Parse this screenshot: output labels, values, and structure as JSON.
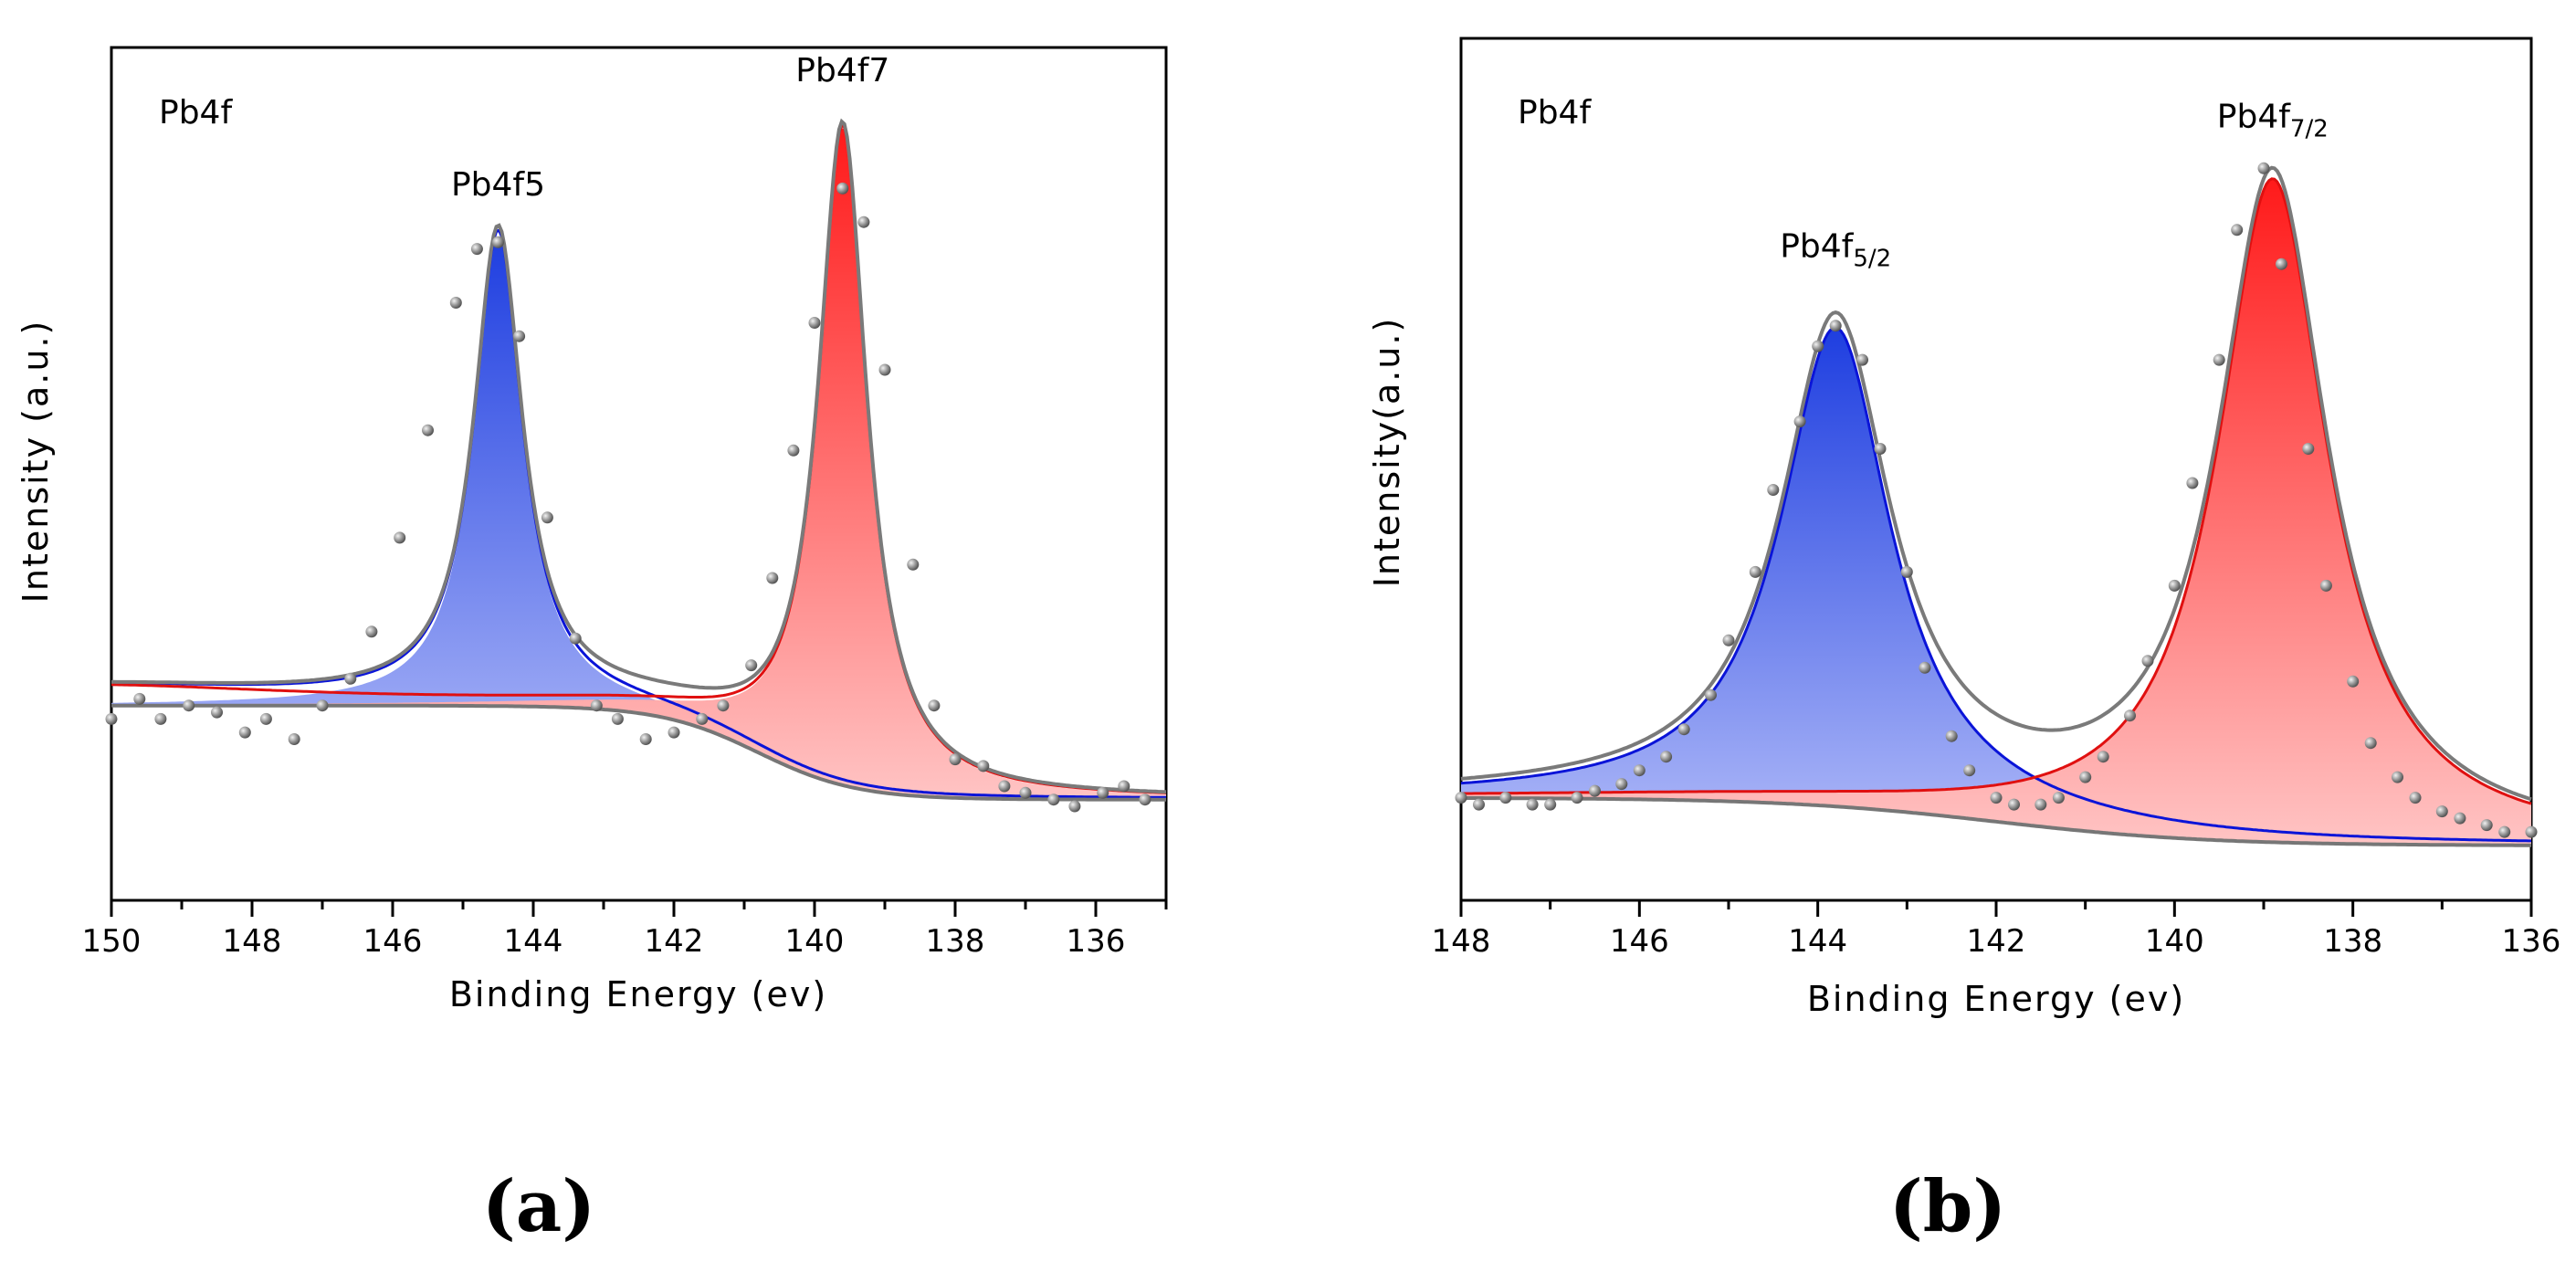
{
  "chart_data": [
    {
      "type": "line",
      "panel": "(a)",
      "annotation": "Pb4f",
      "xlabel": "Binding Energy (ev)",
      "ylabel": "Intensity (a.u.)",
      "xlim": [
        150,
        135
      ],
      "ylim": [
        -0.15,
        1.12
      ],
      "xticks": [
        150,
        148,
        146,
        144,
        142,
        140,
        138,
        136
      ],
      "x_tick_labels": [
        "150",
        "148",
        "146",
        "144",
        "142",
        "140",
        "138",
        "136"
      ],
      "legend": "none",
      "grid": false,
      "background": {
        "left_level": 0.14,
        "right_level": 0.0,
        "step_center": 140.8,
        "step_width": 0.7
      },
      "peaks": [
        {
          "name": "Pb4f5",
          "label": "Pb4f5",
          "sub": "",
          "center": 144.5,
          "height": 0.7,
          "width": 0.42,
          "color_top": "#1e3ee0",
          "color_bottom": "#b0baf8",
          "label_pos": [
            144.5,
            0.9
          ]
        },
        {
          "name": "Pb4f7",
          "label": "Pb4f7",
          "sub": "",
          "center": 139.6,
          "height": 0.98,
          "width": 0.42,
          "color_top": "#ff1a1a",
          "color_bottom": "#ffc4c4",
          "label_pos": [
            139.6,
            1.07
          ]
        }
      ],
      "extra_tail": {
        "center": 150.5,
        "height": 0.03,
        "width": 4.0
      },
      "data_points": {
        "x": [
          150.0,
          149.6,
          149.3,
          148.9,
          148.5,
          148.1,
          147.8,
          147.4,
          147.0,
          146.6,
          146.3,
          145.9,
          145.5,
          145.1,
          144.8,
          144.5,
          144.2,
          143.8,
          143.4,
          143.1,
          142.8,
          142.4,
          142.0,
          141.6,
          141.3,
          140.9,
          140.6,
          140.3,
          140.0,
          139.6,
          139.3,
          139.0,
          138.6,
          138.3,
          138.0,
          137.6,
          137.3,
          137.0,
          136.6,
          136.3,
          135.9,
          135.6,
          135.3
        ],
        "y": [
          0.12,
          0.15,
          0.12,
          0.14,
          0.13,
          0.1,
          0.12,
          0.09,
          0.14,
          0.18,
          0.25,
          0.39,
          0.55,
          0.74,
          0.82,
          0.83,
          0.69,
          0.42,
          0.24,
          0.14,
          0.12,
          0.09,
          0.1,
          0.12,
          0.14,
          0.2,
          0.33,
          0.52,
          0.71,
          0.91,
          0.86,
          0.64,
          0.35,
          0.14,
          0.06,
          0.05,
          0.02,
          0.01,
          0.0,
          -0.01,
          0.01,
          0.02,
          0.0
        ]
      }
    },
    {
      "type": "line",
      "panel": "(b)",
      "annotation": "Pb4f",
      "xlabel": "Binding Energy (ev)",
      "ylabel": "Intensity(a.u.)",
      "xlim": [
        148,
        136
      ],
      "ylim": [
        -0.08,
        1.18
      ],
      "xticks": [
        148,
        146,
        144,
        142,
        140,
        138,
        136
      ],
      "x_tick_labels": [
        "148",
        "146",
        "144",
        "142",
        "140",
        "138",
        "136"
      ],
      "legend": "none",
      "grid": false,
      "background": {
        "left_level": 0.07,
        "right_level": 0.0,
        "step_center": 142.0,
        "step_width": 1.2
      },
      "peaks": [
        {
          "name": "Pb4f5/2",
          "label": "Pb4f",
          "sub": "5/2",
          "center": 143.8,
          "height": 0.7,
          "width": 0.75,
          "color_top": "#1e3ee0",
          "color_bottom": "#b0baf8",
          "label_pos": [
            143.8,
            0.86
          ]
        },
        {
          "name": "Pb4f7/2",
          "label": "Pb4f",
          "sub": "7/2",
          "center": 138.9,
          "height": 0.97,
          "width": 0.75,
          "color_top": "#ff1a1a",
          "color_bottom": "#ffc4c4",
          "label_pos": [
            138.9,
            1.05
          ]
        }
      ],
      "extra_tail": {
        "center": 150.0,
        "height": 0.0,
        "width": 4.0
      },
      "data_points": {
        "x": [
          148.0,
          147.8,
          147.5,
          147.2,
          147.0,
          146.7,
          146.5,
          146.2,
          146.0,
          145.7,
          145.5,
          145.2,
          145.0,
          144.7,
          144.5,
          144.2,
          144.0,
          143.8,
          143.5,
          143.3,
          143.0,
          142.8,
          142.5,
          142.3,
          142.0,
          141.8,
          141.5,
          141.3,
          141.0,
          140.8,
          140.5,
          140.3,
          140.0,
          139.8,
          139.5,
          139.3,
          139.0,
          138.8,
          138.5,
          138.3,
          138.0,
          137.8,
          137.5,
          137.3,
          137.0,
          136.8,
          136.5,
          136.3,
          136.0
        ],
        "y": [
          0.07,
          0.06,
          0.07,
          0.06,
          0.06,
          0.07,
          0.08,
          0.09,
          0.11,
          0.13,
          0.17,
          0.22,
          0.3,
          0.4,
          0.52,
          0.62,
          0.73,
          0.76,
          0.71,
          0.58,
          0.4,
          0.26,
          0.16,
          0.11,
          0.07,
          0.06,
          0.06,
          0.07,
          0.1,
          0.13,
          0.19,
          0.27,
          0.38,
          0.53,
          0.71,
          0.9,
          0.99,
          0.85,
          0.58,
          0.38,
          0.24,
          0.15,
          0.1,
          0.07,
          0.05,
          0.04,
          0.03,
          0.02,
          0.02
        ]
      }
    }
  ]
}
